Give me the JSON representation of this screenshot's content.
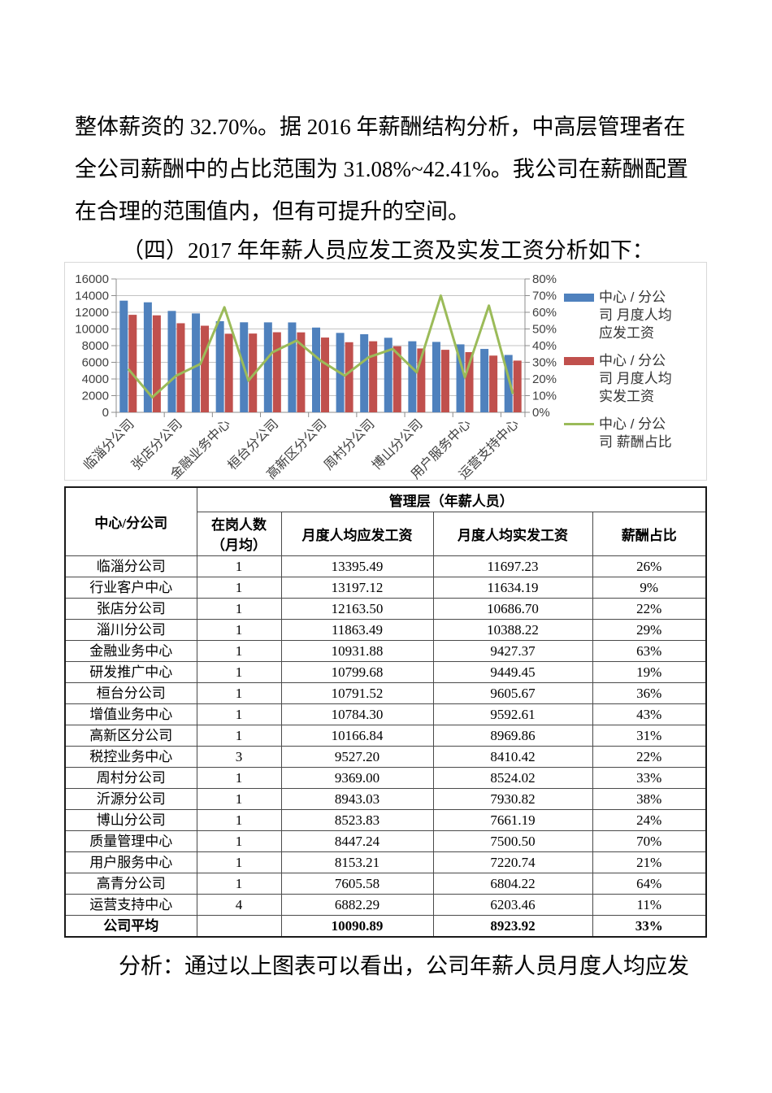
{
  "document": {
    "paragraph_lines": [
      "整体薪资的 32.70%。据 2016 年薪酬结构分析，中高层管理者在",
      "全公司薪酬中的占比范围为 31.08%~42.41%。我公司在薪酬配置",
      "在合理的范围值内，但有可提升的空间。"
    ],
    "section_heading": "（四）2017 年年薪人员应发工资及实发工资分析如下：",
    "analysis_line": "分析：通过以上图表可以看出，公司年薪人员月度人均应发"
  },
  "chart_data": {
    "type": "bar",
    "combo": "two bar series on left value axis + one line series on right percent axis",
    "title": "",
    "categories": [
      "临淄分公司",
      "行业客户中心",
      "张店分公司",
      "淄川分公司",
      "金融业务中心",
      "研发推广中心",
      "桓台分公司",
      "增值业务中心",
      "高新区分公司",
      "税控业务中心",
      "周村分公司",
      "沂源分公司",
      "博山分公司",
      "质量管理中心",
      "用户服务中心",
      "高青分公司",
      "运营支持中心"
    ],
    "x_axis_visible_labels": [
      "临淄分公司",
      "张店分公司",
      "金融业务中心",
      "桓台分公司",
      "高新区分公司",
      "周村分公司",
      "博山分公司",
      "用户服务中心",
      "运营支持中心"
    ],
    "series": [
      {
        "name": "中心 / 分公司 月度人均应发工资",
        "type": "bar",
        "axis": "left",
        "color": "#4F81BD",
        "values": [
          13395.49,
          13197.12,
          12163.5,
          11863.49,
          10931.88,
          10799.68,
          10791.52,
          10784.3,
          10166.84,
          9527.2,
          9369.0,
          8943.03,
          8523.83,
          8447.24,
          8153.21,
          7605.58,
          6882.29
        ]
      },
      {
        "name": "中心 / 分公司 月度人均实发工资",
        "type": "bar",
        "axis": "left",
        "color": "#C0504D",
        "values": [
          11697.23,
          11634.19,
          10686.7,
          10388.22,
          9427.37,
          9449.45,
          9605.67,
          9592.61,
          8969.86,
          8410.42,
          8524.02,
          7930.82,
          7661.19,
          7500.5,
          7220.74,
          6804.22,
          6203.46
        ]
      },
      {
        "name": "中心 / 分公司 薪酬占比",
        "type": "line",
        "axis": "right",
        "color": "#9BBB59",
        "values_percent": [
          26,
          9,
          22,
          29,
          63,
          19,
          36,
          43,
          31,
          22,
          33,
          38,
          24,
          70,
          21,
          64,
          11
        ]
      }
    ],
    "left_axis": {
      "min": 0,
      "max": 16000,
      "step": 2000,
      "tick_labels": [
        "0",
        "2000",
        "4000",
        "6000",
        "8000",
        "10000",
        "12000",
        "14000",
        "16000"
      ]
    },
    "right_axis": {
      "min": 0,
      "max": 80,
      "step": 10,
      "tick_labels": [
        "0%",
        "10%",
        "20%",
        "30%",
        "40%",
        "50%",
        "60%",
        "70%",
        "80%"
      ]
    },
    "legend_position": "right",
    "grid": "horizontal gridlines on",
    "colors": {
      "grid": "#C3C3C3",
      "axis": "#8c8c8c",
      "chart_border": "#D8D8D8"
    }
  },
  "table": {
    "merged_header": "管理层（年薪人员）",
    "columns": [
      "中心/分公司",
      "在岗人数\n（月均）",
      "月度人均应发工资",
      "月度人均实发工资",
      "薪酬占比"
    ],
    "rows": [
      [
        "临淄分公司",
        "1",
        "13395.49",
        "11697.23",
        "26%"
      ],
      [
        "行业客户中心",
        "1",
        "13197.12",
        "11634.19",
        "9%"
      ],
      [
        "张店分公司",
        "1",
        "12163.50",
        "10686.70",
        "22%"
      ],
      [
        "淄川分公司",
        "1",
        "11863.49",
        "10388.22",
        "29%"
      ],
      [
        "金融业务中心",
        "1",
        "10931.88",
        "9427.37",
        "63%"
      ],
      [
        "研发推广中心",
        "1",
        "10799.68",
        "9449.45",
        "19%"
      ],
      [
        "桓台分公司",
        "1",
        "10791.52",
        "9605.67",
        "36%"
      ],
      [
        "增值业务中心",
        "1",
        "10784.30",
        "9592.61",
        "43%"
      ],
      [
        "高新区分公司",
        "1",
        "10166.84",
        "8969.86",
        "31%"
      ],
      [
        "税控业务中心",
        "3",
        "9527.20",
        "8410.42",
        "22%"
      ],
      [
        "周村分公司",
        "1",
        "9369.00",
        "8524.02",
        "33%"
      ],
      [
        "沂源分公司",
        "1",
        "8943.03",
        "7930.82",
        "38%"
      ],
      [
        "博山分公司",
        "1",
        "8523.83",
        "7661.19",
        "24%"
      ],
      [
        "质量管理中心",
        "1",
        "8447.24",
        "7500.50",
        "70%"
      ],
      [
        "用户服务中心",
        "1",
        "8153.21",
        "7220.74",
        "21%"
      ],
      [
        "高青分公司",
        "1",
        "7605.58",
        "6804.22",
        "64%"
      ],
      [
        "运营支持中心",
        "4",
        "6882.29",
        "6203.46",
        "11%"
      ]
    ],
    "footer": [
      "公司平均",
      "",
      "10090.89",
      "8923.92",
      "33%"
    ]
  }
}
